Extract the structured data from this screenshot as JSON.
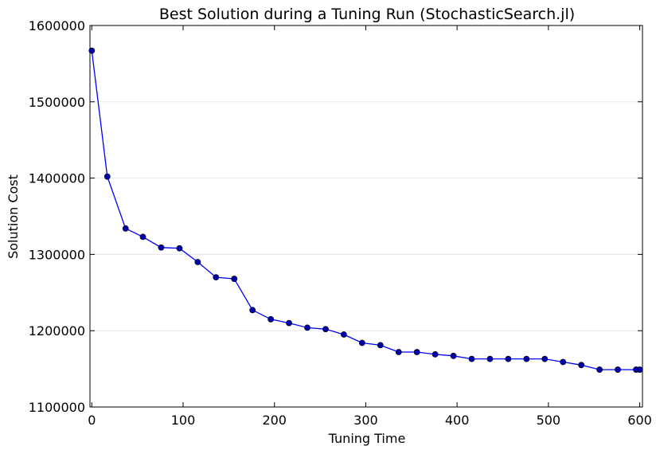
{
  "chart_data": {
    "type": "line",
    "title": "Best Solution during a Tuning Run (StochasticSearch.jl)",
    "xlabel": "Tuning Time",
    "ylabel": "Solution Cost",
    "xlim": [
      -2,
      603
    ],
    "ylim": [
      1100000,
      1600000
    ],
    "xticks": [
      0,
      100,
      200,
      300,
      400,
      500,
      600
    ],
    "yticks": [
      1100000,
      1200000,
      1300000,
      1400000,
      1500000,
      1600000
    ],
    "xtick_labels": [
      "0",
      "100",
      "200",
      "300",
      "400",
      "500",
      "600"
    ],
    "ytick_labels": [
      "1100000",
      "1200000",
      "1300000",
      "1400000",
      "1500000",
      "1600000"
    ],
    "grid": "horizontal",
    "legend": "none",
    "series": [
      {
        "color": "#0000ff",
        "marker_color": "#0000aa",
        "x": [
          0,
          17,
          37,
          56,
          76,
          96,
          116,
          136,
          156,
          176,
          196,
          216,
          236,
          256,
          276,
          296,
          316,
          336,
          356,
          376,
          396,
          416,
          436,
          456,
          476,
          496,
          516,
          536,
          556,
          576,
          596,
          600
        ],
        "y": [
          1567000,
          1402000,
          1334000,
          1323000,
          1309000,
          1308000,
          1290000,
          1270000,
          1268000,
          1227000,
          1215000,
          1210000,
          1204000,
          1202000,
          1195000,
          1184000,
          1181000,
          1172000,
          1172000,
          1169000,
          1167000,
          1163000,
          1163000,
          1163000,
          1163000,
          1163000,
          1159000,
          1155000,
          1149000,
          1149000,
          1149000,
          1149000
        ]
      }
    ]
  }
}
